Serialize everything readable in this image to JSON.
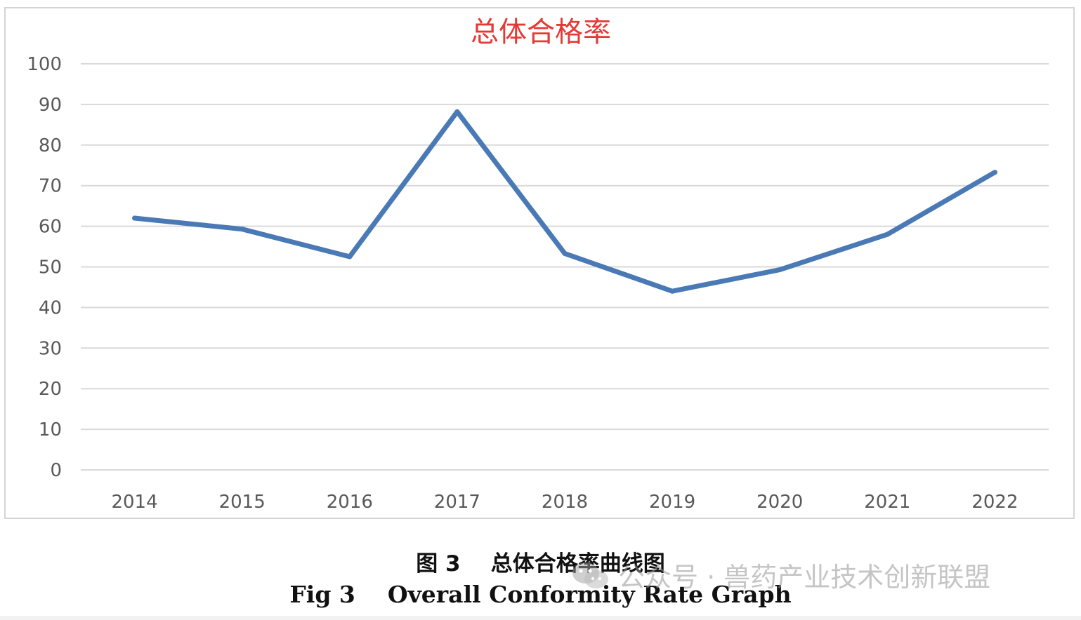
{
  "captions": {
    "cn": "图 3    总体合格率曲线图",
    "en": "Fig 3    Overall Conformity Rate Graph"
  },
  "watermark": {
    "text": "公众号 · 兽药产业技术创新联盟",
    "icon": "wechat-icon"
  },
  "chart_data": {
    "type": "line",
    "title": "总体合格率",
    "title_color": "#e53935",
    "line_color": "#4a7ab5",
    "categories": [
      "2014",
      "2015",
      "2016",
      "2017",
      "2018",
      "2019",
      "2020",
      "2021",
      "2022"
    ],
    "series": [
      {
        "values": [
          62,
          59.3,
          52.5,
          88.2,
          53.3,
          44,
          49.3,
          58,
          73.3
        ]
      }
    ],
    "yticks": [
      "0",
      "10",
      "20",
      "30",
      "40",
      "50",
      "60",
      "70",
      "80",
      "90",
      "100"
    ],
    "ylim": [
      0,
      100
    ],
    "grid": true,
    "legend": "none"
  }
}
